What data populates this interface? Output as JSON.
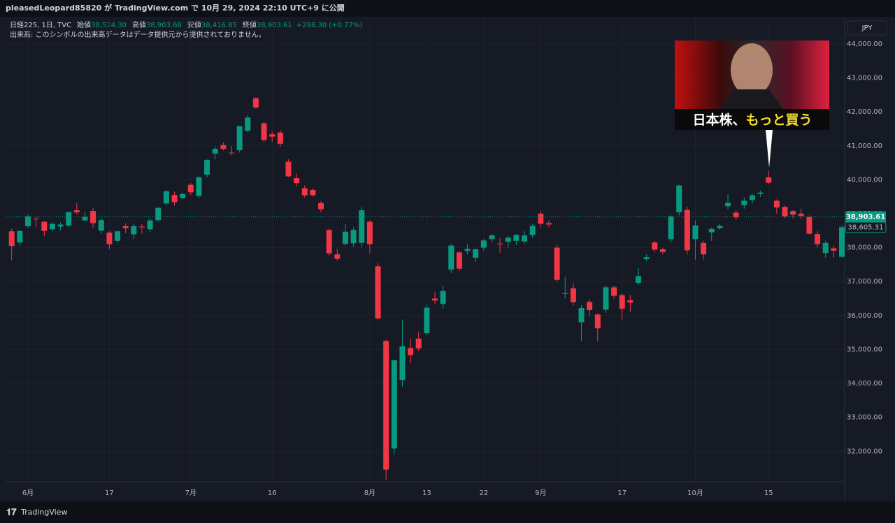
{
  "header": {
    "publish": "pleasedLeopard85820 が TradingView.com で 10月 29, 2024 22:10 UTC+9 に公開"
  },
  "legend": {
    "symbol": "日経225, 1日, TVC",
    "items": [
      {
        "label": "始値",
        "value": "38,524.30"
      },
      {
        "label": "高値",
        "value": "38,903.68"
      },
      {
        "label": "安値",
        "value": "38,416.85"
      },
      {
        "label": "終値",
        "value": "38,903.61"
      }
    ],
    "change": "+298.30 (+0.77%)",
    "volume_note": "出来高: このシンボルの出来高データはデータ提供元から提供されておりません。"
  },
  "currency": "JPY",
  "annotation": {
    "text_white": "日本株、",
    "text_yellow": "もっと買う"
  },
  "footer": {
    "brand": "TradingView"
  },
  "chart_data": {
    "type": "candlestick",
    "categories": [
      null,
      null,
      "6月",
      null,
      null,
      null,
      null,
      null,
      null,
      null,
      null,
      null,
      "17",
      null,
      null,
      null,
      null,
      null,
      null,
      null,
      null,
      null,
      "7月",
      null,
      null,
      null,
      null,
      null,
      null,
      null,
      null,
      null,
      "16",
      null,
      null,
      null,
      null,
      null,
      null,
      null,
      null,
      null,
      null,
      null,
      "8月",
      null,
      null,
      null,
      null,
      null,
      null,
      "13",
      null,
      null,
      null,
      null,
      null,
      null,
      "22",
      null,
      null,
      null,
      null,
      null,
      null,
      "9月",
      null,
      null,
      null,
      null,
      null,
      null,
      null,
      null,
      null,
      "17",
      null,
      null,
      null,
      null,
      null,
      null,
      null,
      null,
      "10月",
      null,
      null,
      null,
      null,
      null,
      null,
      null,
      null,
      "15",
      null,
      null,
      null,
      null,
      null,
      null,
      null,
      null,
      null
    ],
    "open": [
      38480,
      38150,
      38630,
      38850,
      38760,
      38540,
      38620,
      38650,
      39100,
      38800,
      39080,
      38500,
      38440,
      38200,
      38630,
      38390,
      38620,
      38540,
      38810,
      39300,
      39550,
      39460,
      39850,
      39520,
      40150,
      40770,
      41020,
      40800,
      40870,
      41440,
      42400,
      41660,
      41340,
      41390,
      40530,
      40050,
      39750,
      39700,
      39310,
      38520,
      37800,
      38110,
      38130,
      38140,
      38760,
      37450,
      35250,
      32080,
      34100,
      35040,
      35320,
      35480,
      36500,
      36340,
      37350,
      37860,
      37900,
      37700,
      38000,
      38250,
      38120,
      38170,
      38200,
      38180,
      38370,
      39000,
      38720,
      38000,
      36650,
      36800,
      35800,
      36400,
      36030,
      36170,
      36830,
      36600,
      36450,
      36960,
      37660,
      38150,
      37950,
      38250,
      39040,
      39110,
      38250,
      38140,
      38450,
      38570,
      39220,
      39030,
      39250,
      39400,
      39580,
      40070,
      39380,
      39200,
      39080,
      39000,
      38900,
      38400,
      37840,
      37980,
      37730
    ],
    "high": [
      38560,
      38520,
      38970,
      38900,
      38780,
      38750,
      38740,
      39080,
      39310,
      39050,
      39160,
      38880,
      38480,
      38500,
      38720,
      38700,
      38690,
      38850,
      39200,
      39700,
      39650,
      39620,
      39900,
      40100,
      40600,
      40980,
      41100,
      41000,
      41580,
      41900,
      42430,
      41700,
      41420,
      41460,
      40600,
      40180,
      39830,
      39750,
      39370,
      38550,
      37960,
      38690,
      38600,
      39200,
      38800,
      37560,
      35280,
      34700,
      35880,
      35320,
      35520,
      36320,
      36700,
      36870,
      38100,
      37900,
      38100,
      37960,
      38250,
      38400,
      38280,
      38350,
      38400,
      38500,
      38700,
      39080,
      38800,
      38100,
      37140,
      36950,
      36300,
      36480,
      36060,
      36880,
      36880,
      36650,
      36600,
      37400,
      37800,
      38200,
      38000,
      38950,
      39850,
      39200,
      38800,
      38200,
      38600,
      38700,
      39570,
      39100,
      39480,
      39600,
      39680,
      40260,
      39420,
      39240,
      39100,
      39150,
      38950,
      38480,
      38200,
      38060,
      38660
    ],
    "low": [
      37620,
      38060,
      38570,
      38600,
      38330,
      38480,
      38500,
      38600,
      38980,
      38780,
      38590,
      38400,
      37950,
      38150,
      38420,
      38250,
      38410,
      38470,
      38760,
      39250,
      39240,
      39430,
      39550,
      39450,
      40070,
      40600,
      40860,
      40720,
      40800,
      41400,
      42090,
      41100,
      41100,
      40960,
      40080,
      39800,
      39470,
      39500,
      39040,
      37760,
      37610,
      38050,
      38030,
      38000,
      37830,
      35880,
      31160,
      31900,
      33900,
      34600,
      34950,
      35430,
      36330,
      36200,
      37250,
      37310,
      37800,
      37580,
      37900,
      38150,
      37850,
      37990,
      38080,
      38120,
      38280,
      38600,
      38600,
      37000,
      36500,
      36300,
      35250,
      35980,
      35250,
      36080,
      36500,
      35880,
      36100,
      36900,
      37600,
      37860,
      37800,
      38150,
      38950,
      37800,
      37650,
      37650,
      38200,
      38520,
      39130,
      38800,
      39150,
      39300,
      39500,
      39870,
      39000,
      38870,
      38860,
      38850,
      38400,
      38000,
      37700,
      37700,
      37700
    ],
    "close": [
      38050,
      38490,
      38920,
      38840,
      38490,
      38700,
      38680,
      39040,
      39040,
      38900,
      38720,
      38810,
      38100,
      38480,
      38570,
      38630,
      38600,
      38800,
      39170,
      39660,
      39340,
      39580,
      39630,
      40070,
      40580,
      40910,
      40910,
      40780,
      41580,
      41830,
      42130,
      41170,
      41270,
      41060,
      40100,
      39900,
      39540,
      39540,
      39130,
      37830,
      37670,
      38470,
      38520,
      39100,
      38100,
      35910,
      31460,
      34680,
      35090,
      34830,
      35030,
      36230,
      36440,
      36720,
      38060,
      37380,
      37960,
      37950,
      38210,
      38360,
      38110,
      38290,
      38370,
      38360,
      38640,
      38700,
      38680,
      37050,
      36660,
      36390,
      36220,
      36160,
      35620,
      36830,
      36580,
      36200,
      36380,
      37160,
      37720,
      37940,
      37870,
      38920,
      39830,
      37920,
      38650,
      37800,
      38550,
      38640,
      39320,
      38890,
      39380,
      39540,
      39620,
      39910,
      39180,
      38920,
      38970,
      38930,
      38410,
      38100,
      38140,
      37910,
      38600
    ],
    "up_color": "#089981",
    "down_color": "#f23645",
    "ylim": [
      31100,
      44780
    ],
    "yticks": [
      {
        "value": 32000,
        "label": "32,000.00"
      },
      {
        "value": 33000,
        "label": "33,000.00"
      },
      {
        "value": 34000,
        "label": "34,000.00"
      },
      {
        "value": 35000,
        "label": "35,000.00"
      },
      {
        "value": 36000,
        "label": "36,000.00"
      },
      {
        "value": 37000,
        "label": "37,000.00"
      },
      {
        "value": 38000,
        "label": "38,000.00"
      },
      {
        "value": 39000,
        "label": "39,000.00"
      },
      {
        "value": 40000,
        "label": "40,000.00"
      },
      {
        "value": 41000,
        "label": "41,000.00"
      },
      {
        "value": 42000,
        "label": "42,000.00"
      },
      {
        "value": 43000,
        "label": "43,000.00"
      },
      {
        "value": 44000,
        "label": "44,000.00"
      }
    ],
    "grid": true,
    "last_price": {
      "value": 38903.61,
      "label": "38,903.61"
    },
    "prev_close": {
      "value": 38605.31,
      "label": "38,605.31"
    }
  }
}
